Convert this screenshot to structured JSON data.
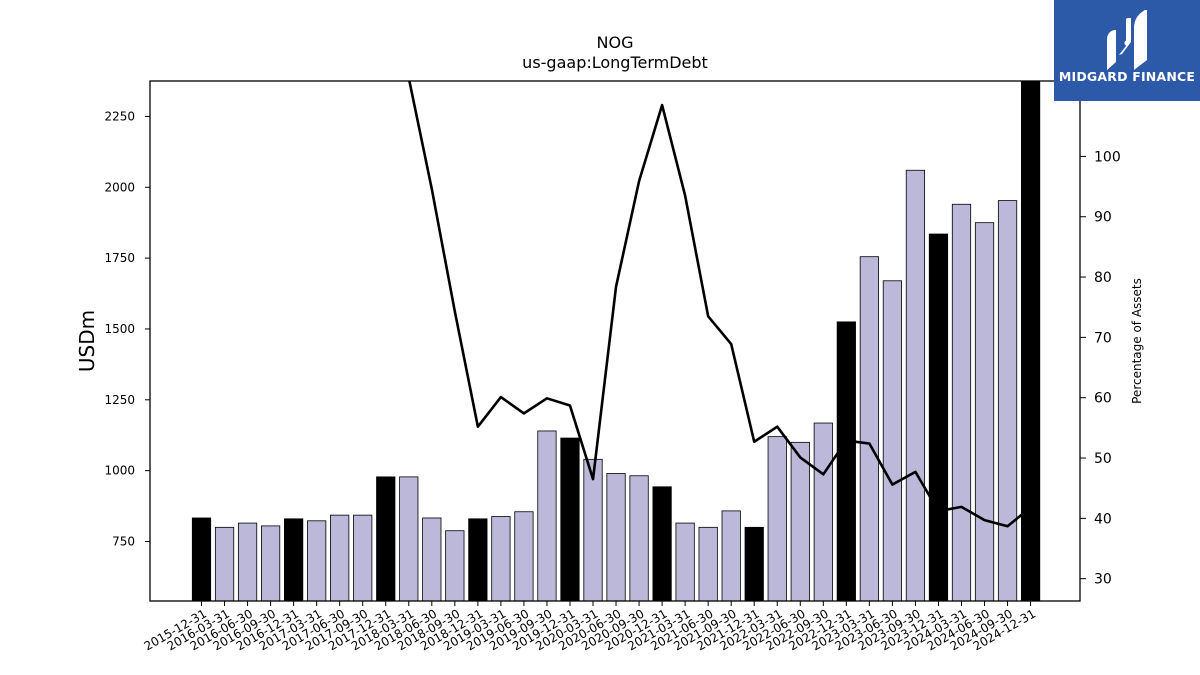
{
  "chart_data": {
    "type": "bar",
    "title": "NOG",
    "subtitle": "us-gaap:LongTermDebt",
    "ylabel": "USDm",
    "y2label": "Percentage of Assets",
    "ylim": [
      540,
      2375
    ],
    "y2lim": [
      26.3,
      112.5
    ],
    "yticks": [
      750,
      1000,
      1250,
      1500,
      1750,
      2000,
      2250
    ],
    "y2ticks": [
      30,
      40,
      50,
      60,
      70,
      80,
      90,
      100
    ],
    "categories": [
      "2015-12-31",
      "2016-03-31",
      "2016-06-30",
      "2016-09-30",
      "2016-12-31",
      "2017-03-31",
      "2017-06-30",
      "2017-09-30",
      "2017-12-31",
      "2018-03-31",
      "2018-06-30",
      "2018-09-30",
      "2018-12-31",
      "2019-03-31",
      "2019-06-30",
      "2019-09-30",
      "2019-12-31",
      "2020-03-31",
      "2020-06-30",
      "2020-09-30",
      "2020-12-31",
      "2021-03-31",
      "2021-06-30",
      "2021-09-30",
      "2021-12-31",
      "2022-03-31",
      "2022-06-30",
      "2022-09-30",
      "2022-12-31",
      "2023-03-31",
      "2023-06-30",
      "2023-09-30",
      "2023-12-31",
      "2024-03-31",
      "2024-06-30",
      "2024-09-30",
      "2024-12-31"
    ],
    "series": [
      {
        "kind": "bar",
        "values": [
          833,
          800,
          815,
          805,
          830,
          823,
          843,
          843,
          978,
          978,
          833,
          788,
          830,
          838,
          855,
          1140,
          1115,
          1040,
          990,
          982,
          943,
          815,
          800,
          858,
          800,
          1120,
          1100,
          1168,
          1525,
          1755,
          1670,
          2060,
          1835,
          1940,
          1875,
          1953,
          2375
        ],
        "annual_flags": [
          true,
          false,
          false,
          false,
          true,
          false,
          false,
          false,
          true,
          false,
          false,
          false,
          true,
          false,
          false,
          false,
          true,
          false,
          false,
          false,
          true,
          false,
          false,
          false,
          true,
          false,
          false,
          false,
          true,
          false,
          false,
          false,
          true,
          false,
          false,
          false,
          true
        ]
      },
      {
        "kind": "line",
        "axis": "right",
        "values": [
          null,
          null,
          null,
          null,
          null,
          null,
          null,
          null,
          null,
          113,
          94.6,
          74.3,
          55.2,
          60.1,
          57.4,
          59.9,
          58.7,
          46.5,
          78.4,
          95.9,
          108.5,
          93.5,
          73.5,
          68.9,
          52.7,
          55.2,
          50.1,
          47.3,
          52.9,
          52.4,
          45.6,
          47.7,
          41.2,
          41.9,
          39.7,
          38.7,
          41.8
        ]
      }
    ],
    "colors": {
      "annual_bar": "#000000",
      "quarter_bar": "#bcb8d9",
      "line": "#000000",
      "logo_bg": "#2d5aa8"
    },
    "grid": false
  },
  "logo": {
    "text": "MIDGARD FINANCE",
    "icon": "midgard-logo-icon"
  }
}
